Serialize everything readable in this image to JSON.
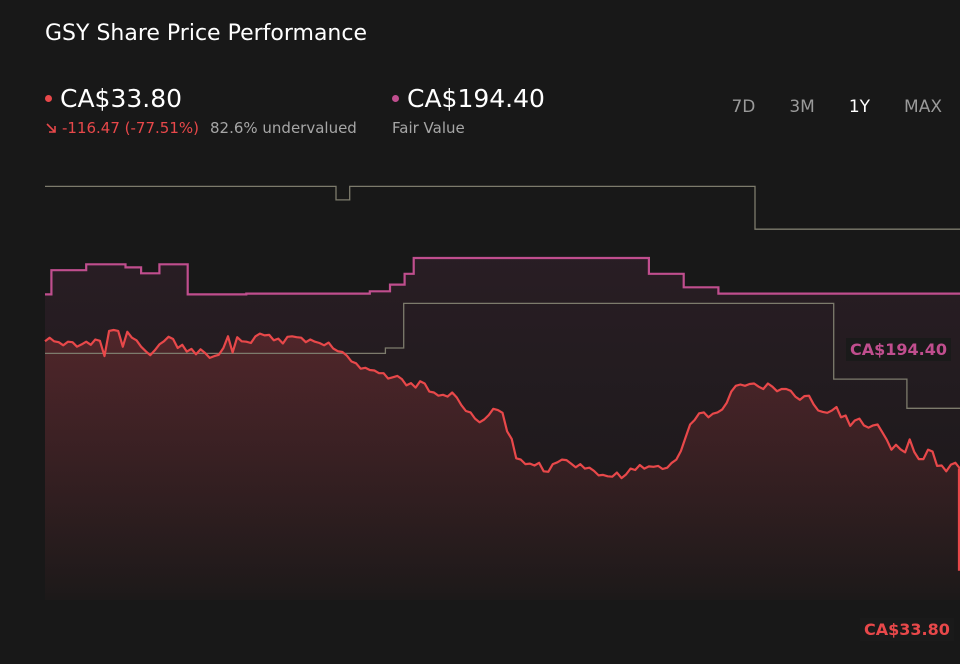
{
  "title": "GSY Share Price Performance",
  "price": {
    "value": "CA$33.80",
    "change": "-116.47 (-77.51%)",
    "valuation": "82.6% undervalued",
    "color": "#e8484a",
    "arrow_icon": "arrow-down-right-icon"
  },
  "fair_value": {
    "value": "CA$194.40",
    "label": "Fair Value",
    "color": "#c04e8e"
  },
  "tabs": [
    {
      "label": "7D",
      "active": false
    },
    {
      "label": "3M",
      "active": false
    },
    {
      "label": "1Y",
      "active": true
    },
    {
      "label": "MAX",
      "active": false
    }
  ],
  "chart_data": {
    "type": "line",
    "ylim": [
      0,
      100
    ],
    "xlim": [
      0,
      100
    ],
    "series": [
      {
        "key": "price",
        "color": "#e8484a",
        "end_label": "CA$33.80",
        "points": [
          [
            0,
            57.5
          ],
          [
            0.5,
            58.3
          ],
          [
            1,
            57.5
          ],
          [
            1.5,
            57.3
          ],
          [
            2,
            56.6
          ],
          [
            2.5,
            57.4
          ],
          [
            3,
            57.3
          ],
          [
            3.5,
            56.3
          ],
          [
            4,
            56.8
          ],
          [
            4.5,
            57.4
          ],
          [
            5,
            56.7
          ],
          [
            5.5,
            57.9
          ],
          [
            6,
            57.6
          ],
          [
            6.5,
            54.2
          ],
          [
            7,
            59.8
          ],
          [
            7.5,
            60
          ],
          [
            8,
            59.8
          ],
          [
            8.5,
            56.3
          ],
          [
            9,
            59.6
          ],
          [
            9.5,
            58.3
          ],
          [
            10,
            57.7
          ],
          [
            10.5,
            56.3
          ],
          [
            11,
            55.3
          ],
          [
            11.5,
            54.4
          ],
          [
            12,
            55.5
          ],
          [
            12.5,
            56.8
          ],
          [
            13,
            57.5
          ],
          [
            13.5,
            58.5
          ],
          [
            14,
            58
          ],
          [
            14.5,
            56
          ],
          [
            15,
            56.7
          ],
          [
            15.5,
            55.2
          ],
          [
            16,
            55.8
          ],
          [
            16.5,
            54.6
          ],
          [
            17,
            55.7
          ],
          [
            17.5,
            54.9
          ],
          [
            18,
            53.8
          ],
          [
            18.5,
            54.2
          ],
          [
            19,
            54.5
          ],
          [
            19.5,
            56
          ],
          [
            20,
            58.6
          ],
          [
            20.5,
            55
          ],
          [
            21,
            58.4
          ],
          [
            21.5,
            57.5
          ],
          [
            22,
            57.4
          ],
          [
            22.5,
            57.1
          ],
          [
            23,
            58.6
          ],
          [
            23.5,
            59.2
          ],
          [
            24,
            58.8
          ],
          [
            24.5,
            58.9
          ],
          [
            25,
            57.7
          ],
          [
            25.5,
            58.1
          ],
          [
            26,
            57
          ],
          [
            26.5,
            58.5
          ],
          [
            27,
            58.6
          ],
          [
            27.5,
            58.4
          ],
          [
            28,
            58.3
          ],
          [
            28.5,
            57.3
          ],
          [
            29,
            57.9
          ],
          [
            29.5,
            57.4
          ],
          [
            30,
            57.1
          ],
          [
            30.5,
            56.6
          ],
          [
            31,
            57.2
          ],
          [
            31.5,
            55.9
          ],
          [
            32,
            55.3
          ],
          [
            32.5,
            55.1
          ],
          [
            33,
            54.3
          ],
          [
            33.5,
            53
          ],
          [
            34,
            52.6
          ],
          [
            34.5,
            51.4
          ],
          [
            35,
            51.6
          ],
          [
            35.5,
            51.1
          ],
          [
            36,
            51
          ],
          [
            36.5,
            50.4
          ],
          [
            37,
            50.4
          ],
          [
            37.5,
            49.2
          ],
          [
            38,
            49.5
          ],
          [
            38.5,
            49.8
          ],
          [
            39,
            49.1
          ],
          [
            39.5,
            47.7
          ],
          [
            40,
            48.2
          ],
          [
            40.5,
            47.2
          ],
          [
            41,
            48.6
          ],
          [
            41.5,
            48.1
          ],
          [
            42,
            46.3
          ],
          [
            42.5,
            46.1
          ],
          [
            43,
            45.4
          ],
          [
            43.5,
            45.6
          ],
          [
            44,
            45.2
          ],
          [
            44.5,
            46.1
          ],
          [
            45,
            45
          ],
          [
            45.5,
            43.3
          ],
          [
            46,
            42
          ],
          [
            46.5,
            41.7
          ],
          [
            47,
            40.3
          ],
          [
            47.5,
            39.5
          ],
          [
            48,
            40.1
          ],
          [
            48.5,
            41.1
          ],
          [
            49,
            42.5
          ],
          [
            49.5,
            42.2
          ],
          [
            50,
            41.6
          ],
          [
            50.5,
            37.5
          ],
          [
            51,
            35.8
          ],
          [
            51.5,
            31.5
          ],
          [
            52,
            31.2
          ],
          [
            52.5,
            30.2
          ],
          [
            53,
            30.3
          ],
          [
            53.5,
            29.9
          ],
          [
            54,
            30.5
          ],
          [
            54.5,
            28.6
          ],
          [
            55,
            28.5
          ],
          [
            55.5,
            30.2
          ],
          [
            56,
            30.6
          ],
          [
            56.5,
            31.2
          ],
          [
            57,
            31.1
          ],
          [
            57.5,
            30.3
          ],
          [
            58,
            29.5
          ],
          [
            58.5,
            30.2
          ],
          [
            59,
            29.2
          ],
          [
            59.5,
            29.4
          ],
          [
            60,
            28.7
          ],
          [
            60.5,
            27.7
          ],
          [
            61,
            27.8
          ],
          [
            61.5,
            27.5
          ],
          [
            62,
            27.4
          ],
          [
            62.5,
            28.3
          ],
          [
            63,
            27.1
          ],
          [
            63.5,
            27.9
          ],
          [
            64,
            29.2
          ],
          [
            64.5,
            28.9
          ],
          [
            65,
            30
          ],
          [
            65.5,
            29.2
          ],
          [
            66,
            29.7
          ],
          [
            66.5,
            29.6
          ],
          [
            67,
            29.8
          ],
          [
            67.5,
            29.1
          ],
          [
            68,
            29.4
          ],
          [
            68.5,
            30.5
          ],
          [
            69,
            31.2
          ],
          [
            69.5,
            33.1
          ],
          [
            70,
            36.1
          ],
          [
            70.5,
            39
          ],
          [
            71,
            40
          ],
          [
            71.5,
            41.5
          ],
          [
            72,
            41.7
          ],
          [
            72.5,
            40.6
          ],
          [
            73,
            41.4
          ],
          [
            73.5,
            41.7
          ],
          [
            74,
            42.3
          ],
          [
            74.5,
            43.8
          ],
          [
            75,
            46.3
          ],
          [
            75.5,
            47.6
          ],
          [
            76,
            47.9
          ],
          [
            76.5,
            47.6
          ],
          [
            77,
            48
          ],
          [
            77.5,
            48.1
          ],
          [
            78,
            47.4
          ],
          [
            78.5,
            46.9
          ],
          [
            79,
            48.1
          ],
          [
            79.5,
            47.4
          ],
          [
            80,
            46.4
          ],
          [
            80.5,
            46.9
          ],
          [
            81,
            46.9
          ],
          [
            81.5,
            46.5
          ],
          [
            82,
            45.2
          ],
          [
            82.5,
            44.5
          ],
          [
            83,
            45.3
          ],
          [
            83.5,
            45.4
          ],
          [
            84,
            43.5
          ],
          [
            84.5,
            42.1
          ],
          [
            85,
            41.8
          ],
          [
            85.5,
            41.6
          ],
          [
            86,
            42.1
          ],
          [
            86.5,
            42.9
          ],
          [
            87,
            40.6
          ],
          [
            87.5,
            41
          ],
          [
            88,
            38.7
          ],
          [
            88.5,
            39.9
          ],
          [
            89,
            40.3
          ],
          [
            89.5,
            38.8
          ],
          [
            90,
            38.3
          ],
          [
            90.5,
            38.8
          ],
          [
            91,
            39
          ],
          [
            91.5,
            37.3
          ],
          [
            92,
            35.6
          ],
          [
            92.5,
            33.4
          ],
          [
            93,
            34.5
          ],
          [
            93.5,
            33.5
          ],
          [
            94,
            32.8
          ],
          [
            94.5,
            35.7
          ],
          [
            95,
            32.9
          ],
          [
            95.5,
            31.3
          ],
          [
            96,
            31.3
          ],
          [
            96.5,
            33.4
          ],
          [
            97,
            33
          ],
          [
            97.5,
            29.8
          ],
          [
            98,
            29.9
          ],
          [
            98.5,
            28.6
          ],
          [
            99,
            30.1
          ],
          [
            99.5,
            30.5
          ],
          [
            100,
            29.2
          ]
        ]
      },
      {
        "key": "fair_value",
        "color": "#c04e8e",
        "end_label": "CA$194.40",
        "points": [
          [
            0,
            67.9
          ],
          [
            0.7,
            67.9
          ],
          [
            0.7,
            73.3
          ],
          [
            4.5,
            73.3
          ],
          [
            4.5,
            74.6
          ],
          [
            8.8,
            74.6
          ],
          [
            8.8,
            73.9
          ],
          [
            10.5,
            73.9
          ],
          [
            10.5,
            72.6
          ],
          [
            12.5,
            72.6
          ],
          [
            12.5,
            74.6
          ],
          [
            15.6,
            74.6
          ],
          [
            15.6,
            67.9
          ],
          [
            22,
            67.9
          ],
          [
            22,
            68.1
          ],
          [
            35.5,
            68.1
          ],
          [
            35.5,
            68.6
          ],
          [
            37.7,
            68.6
          ],
          [
            37.7,
            70.1
          ],
          [
            39.3,
            70.1
          ],
          [
            39.3,
            72.5
          ],
          [
            40.3,
            72.5
          ],
          [
            40.3,
            76
          ],
          [
            66,
            76
          ],
          [
            66,
            72.5
          ],
          [
            69.8,
            72.5
          ],
          [
            69.8,
            69.5
          ],
          [
            73.6,
            69.5
          ],
          [
            73.6,
            68.1
          ],
          [
            100,
            68.1
          ]
        ]
      },
      {
        "key": "reference_high",
        "color": "#7d7b6c",
        "end_label": "",
        "points": [
          [
            0,
            91.9
          ],
          [
            31.8,
            91.9
          ],
          [
            31.8,
            88.9
          ],
          [
            33.3,
            88.9
          ],
          [
            33.3,
            91.9
          ],
          [
            77.6,
            91.9
          ],
          [
            77.6,
            82.4
          ],
          [
            100,
            82.4
          ]
        ]
      },
      {
        "key": "reference_low",
        "color": "#7d7b6c",
        "end_label": "",
        "points": [
          [
            0,
            54.8
          ],
          [
            37.2,
            54.8
          ],
          [
            37.2,
            56
          ],
          [
            39.2,
            56
          ],
          [
            39.2,
            65.9
          ],
          [
            86.2,
            65.9
          ],
          [
            86.2,
            49.1
          ],
          [
            94.2,
            49.1
          ],
          [
            94.2,
            42.6
          ],
          [
            100,
            42.6
          ]
        ]
      }
    ],
    "final_drop": {
      "from": [
        100,
        29.2
      ],
      "to": [
        100,
        6.5
      ]
    }
  }
}
